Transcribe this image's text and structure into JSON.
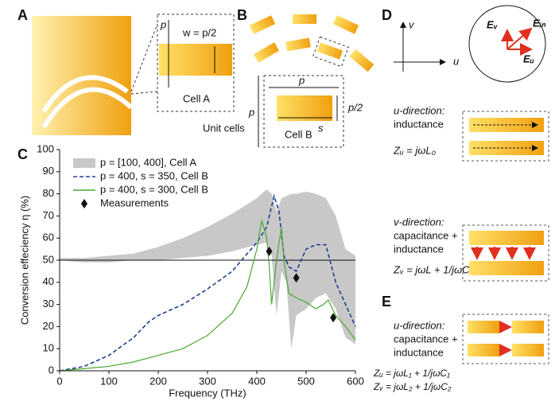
{
  "panels": {
    "a": {
      "letter": "A",
      "p": "p",
      "w": "w = p/2",
      "cell": "Cell A"
    },
    "b": {
      "letter": "B",
      "p_top": "p",
      "p_left": "p",
      "p_half": "p/2",
      "s": "s",
      "cell": "Cell B",
      "unit": "Unit cells"
    },
    "d": {
      "letter": "D",
      "v": "v",
      "u": "u",
      "ev": "Eᵥ",
      "ein": "Eᵢₙ",
      "eu": "Eᵤ",
      "u_head": "u-direction:",
      "u_body": "inductance",
      "u_eq": "Zᵤ = jωL₀",
      "v_head": "v-direction:",
      "v_body1": "capacitance +",
      "v_body2": "inductance",
      "v_eq": "Zᵥ = jωL + 1/jωC"
    },
    "e": {
      "letter": "E",
      "head": "u-direction:",
      "body1": "capacitance +",
      "body2": "inductance",
      "eq1": "Zᵤ = jωL₁ + 1/jωC₁",
      "eq2": "Zᵥ = jωL₂ + 1/jωC₂"
    }
  },
  "chart_data": {
    "type": "line",
    "letter": "C",
    "xlabel": "Frequency (THz)",
    "ylabel": "Conversion effeciency η (%)",
    "xlim": [
      0,
      600
    ],
    "ylim": [
      0,
      100
    ],
    "xticks": [
      0,
      100,
      200,
      300,
      400,
      500,
      600
    ],
    "yticks": [
      0,
      10,
      20,
      30,
      40,
      50,
      60,
      70,
      80,
      90,
      100
    ],
    "hline": 50,
    "series": [
      {
        "name": "p = [100, 400], Cell A",
        "style": "band",
        "color": "#c8c8c8",
        "x": [
          0,
          50,
          100,
          150,
          200,
          250,
          300,
          350,
          400,
          420,
          430,
          440,
          450,
          460,
          470,
          480,
          500,
          520,
          540,
          560,
          580,
          600
        ],
        "high": [
          51,
          51,
          52,
          53,
          56,
          60,
          65,
          71,
          78,
          82,
          80,
          72,
          78,
          79,
          80,
          80,
          81,
          80,
          78,
          70,
          55,
          52
        ],
        "low": [
          50,
          49,
          49,
          50,
          50,
          51,
          52,
          54,
          57,
          58,
          52,
          25,
          45,
          40,
          10,
          25,
          28,
          33,
          35,
          28,
          15,
          12
        ]
      },
      {
        "name": "p = 400, s = 350, Cell B",
        "style": "dashed",
        "color": "#1f3f8f",
        "x": [
          0,
          50,
          100,
          150,
          180,
          200,
          250,
          300,
          350,
          400,
          420,
          435,
          445,
          455,
          465,
          480,
          500,
          520,
          540,
          560,
          580,
          600
        ],
        "values": [
          0,
          2,
          7,
          15,
          22,
          25,
          30,
          37,
          45,
          58,
          65,
          79,
          72,
          52,
          47,
          45,
          55,
          57,
          57,
          40,
          30,
          20
        ]
      },
      {
        "name": "p = 400, s = 300, Cell B",
        "style": "solid",
        "color": "#4aa832",
        "x": [
          0,
          50,
          100,
          150,
          200,
          250,
          300,
          350,
          380,
          400,
          410,
          420,
          425,
          430,
          440,
          450,
          455,
          465,
          480,
          500,
          520,
          535,
          545,
          560,
          580,
          600
        ],
        "values": [
          0,
          1,
          2,
          4,
          7,
          10,
          16,
          26,
          38,
          55,
          68,
          60,
          48,
          30,
          50,
          65,
          50,
          35,
          33,
          31,
          28,
          30,
          32,
          25,
          20,
          14
        ]
      },
      {
        "name": "Measurements",
        "style": "markers",
        "color": "#111111",
        "x": [
          425,
          480,
          555
        ],
        "values": [
          54,
          42,
          24
        ]
      }
    ]
  }
}
